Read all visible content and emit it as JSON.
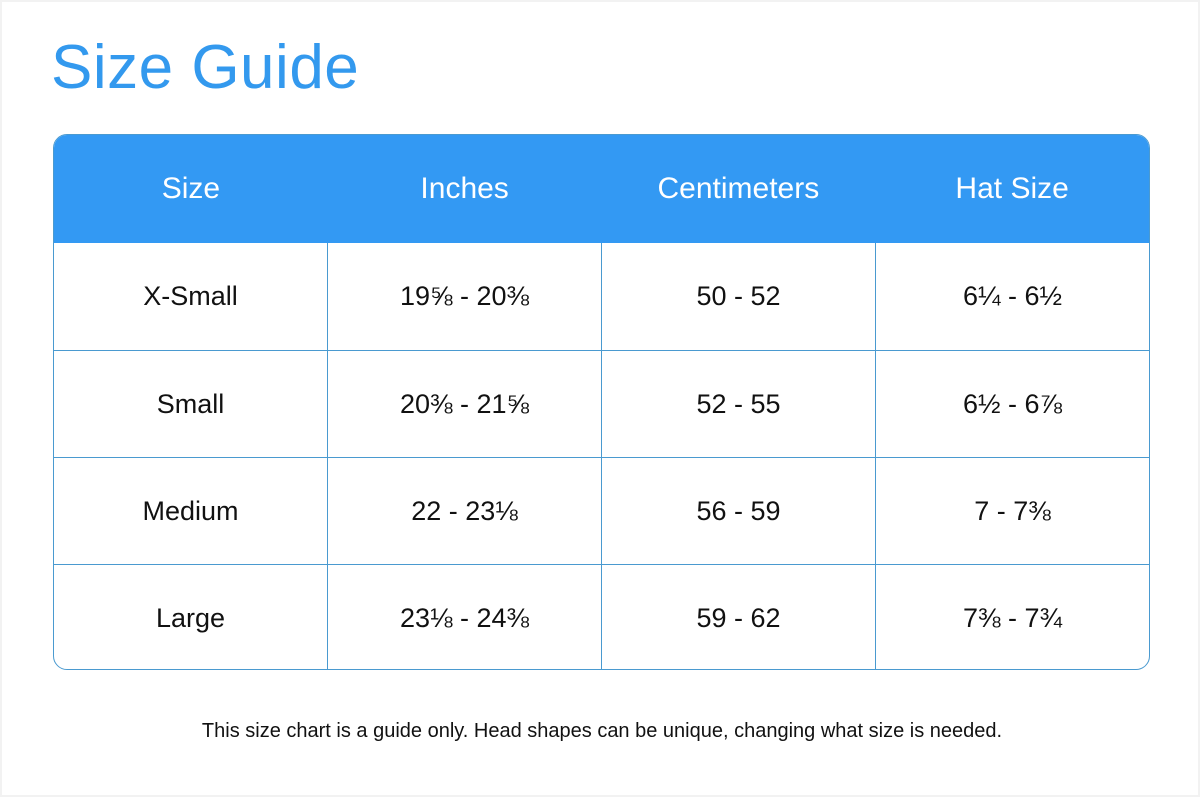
{
  "title": "Size Guide",
  "colors": {
    "accent": "#3399f3",
    "grid": "#4a9ad0"
  },
  "table": {
    "headers": [
      "Size",
      "Inches",
      "Centimeters",
      "Hat Size"
    ],
    "rows": [
      [
        "X-Small",
        "19⅝ - 20⅜",
        "50 - 52",
        "6¼ - 6½"
      ],
      [
        "Small",
        "20⅜ - 21⅝",
        "52 - 55",
        "6½ - 6⅞"
      ],
      [
        "Medium",
        "22 - 23⅛",
        "56 - 59",
        "7 - 7⅜"
      ],
      [
        "Large",
        "23⅛ - 24⅜",
        "59 - 62",
        "7⅜ - 7¾"
      ]
    ]
  },
  "note": "This size chart is a guide only. Head shapes can be unique, changing what size is needed."
}
